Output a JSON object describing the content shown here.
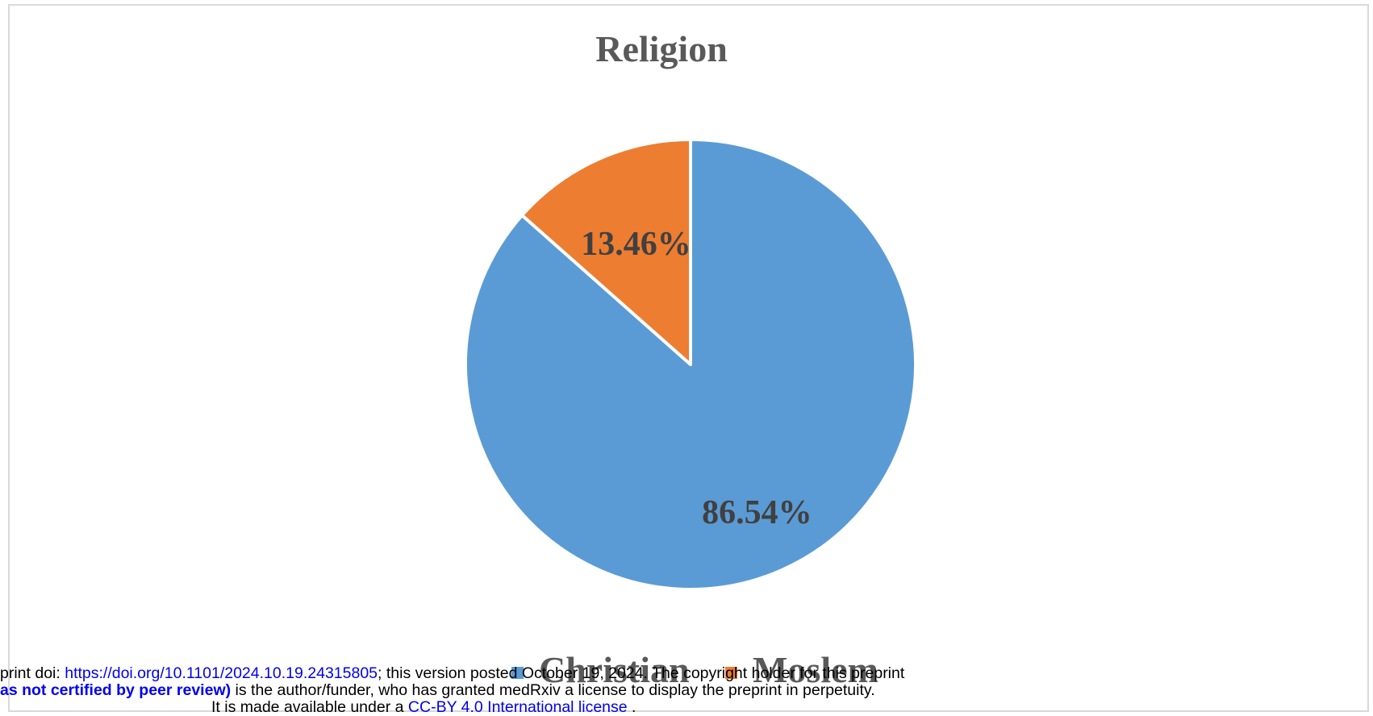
{
  "chart_data": {
    "type": "pie",
    "title": "Religion",
    "categories": [
      "Christian",
      "Moslem"
    ],
    "values": [
      86.54,
      13.46
    ],
    "value_labels": [
      "86.54%",
      "13.46%"
    ],
    "colors": [
      "#5b9bd5",
      "#ed7d31"
    ],
    "start_angle": "12 o'clock",
    "direction": "clockwise",
    "legend_position": "bottom"
  },
  "preprint_notice": {
    "line1_prefix": "print doi: ",
    "doi_link": "https://doi.org/10.1101/2024.10.19.24315805",
    "line1_suffix": "; this version posted October 19, 2024. The copyright holder for this preprint",
    "line2_bold": "as not certified by peer review)",
    "line2_rest": " is the author/funder, who has granted medRxiv a license to display the preprint in perpetuity.",
    "line3_prefix": "It is made available under a ",
    "license_link": "CC-BY 4.0 International license",
    "line3_suffix": " ."
  }
}
